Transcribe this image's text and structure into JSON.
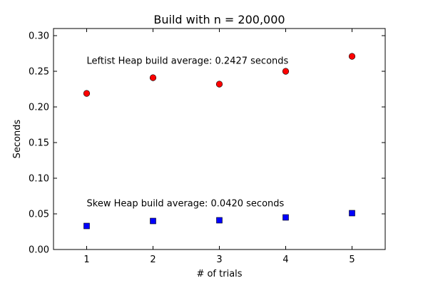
{
  "chart_data": {
    "type": "scatter",
    "title": "Build with n = 200,000",
    "xlabel": "# of trials",
    "ylabel": "Seconds",
    "xlim": [
      0.5,
      5.5
    ],
    "ylim": [
      0.0,
      0.31
    ],
    "x_ticks": [
      1,
      2,
      3,
      4,
      5
    ],
    "y_ticks": [
      0.0,
      0.05,
      0.1,
      0.15,
      0.2,
      0.25,
      0.3
    ],
    "x_tick_labels": [
      "1",
      "2",
      "3",
      "4",
      "5"
    ],
    "y_tick_labels": [
      "0.00",
      "0.05",
      "0.10",
      "0.15",
      "0.20",
      "0.25",
      "0.30"
    ],
    "grid": false,
    "series": [
      {
        "marker": "circle",
        "color": "#ff0000",
        "x": [
          1,
          2,
          3,
          4,
          5
        ],
        "values": [
          0.219,
          0.241,
          0.232,
          0.25,
          0.271
        ]
      },
      {
        "marker": "square",
        "color": "#0000ff",
        "x": [
          1,
          2,
          3,
          4,
          5
        ],
        "values": [
          0.033,
          0.04,
          0.041,
          0.045,
          0.051
        ]
      }
    ],
    "annotations": [
      {
        "text": "Leftist Heap build average: 0.2427 seconds",
        "x": 1,
        "y": 0.2607
      },
      {
        "text": "Skew Heap build average: 0.0420 seconds",
        "x": 1,
        "y": 0.0607
      }
    ]
  }
}
